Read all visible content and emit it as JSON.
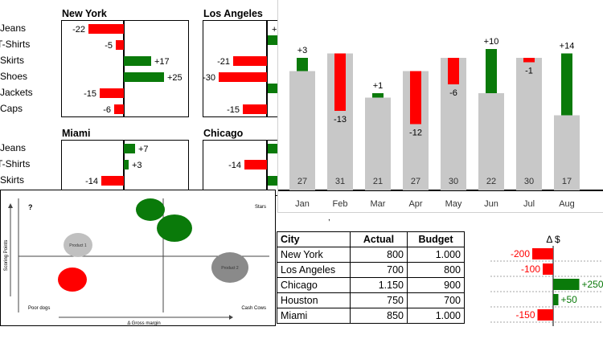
{
  "colors": {
    "positive": "#0a7a0a",
    "negative": "#ff0000",
    "bar_grey": "#c8c8c8",
    "axis": "#000000"
  },
  "chart_data": [
    {
      "type": "bar",
      "orientation": "horizontal",
      "title": "New York",
      "categories": [
        "Jeans",
        "T-Shirts",
        "Skirts",
        "Shoes",
        "Jackets",
        "Caps"
      ],
      "values": [
        -22,
        -5,
        17,
        25,
        -15,
        -6
      ],
      "labels": [
        "-22",
        "-5",
        "+17",
        "+25",
        "-15",
        "-6"
      ]
    },
    {
      "type": "bar",
      "orientation": "horizontal",
      "title": "Los Angeles",
      "categories": [
        "Jeans",
        "T-Shirts",
        "Skirts",
        "Shoes",
        "Jackets",
        "Caps"
      ],
      "values": [
        null,
        null,
        -21,
        -30,
        null,
        -15
      ],
      "labels": [
        "+",
        "",
        "-21",
        "-30",
        "",
        "-15"
      ]
    },
    {
      "type": "bar",
      "orientation": "horizontal",
      "title": "Miami",
      "categories": [
        "Jeans",
        "T-Shirts",
        "Skirts"
      ],
      "values": [
        7,
        3,
        -14
      ],
      "labels": [
        "+7",
        "+3",
        "-14"
      ]
    },
    {
      "type": "bar",
      "orientation": "horizontal",
      "title": "Chicago",
      "categories": [
        "Jeans",
        "T-Shirts",
        "Skirts"
      ],
      "values": [
        null,
        -14,
        null
      ],
      "labels": [
        "",
        "-14",
        ""
      ]
    },
    {
      "type": "bar",
      "title": "",
      "categories": [
        "Jan",
        "Feb",
        "Mar",
        "Apr",
        "May",
        "Jun",
        "Jul",
        "Aug"
      ],
      "series": [
        {
          "values": [
            27,
            31,
            21,
            27,
            30,
            22,
            30,
            17
          ]
        },
        {
          "values": [
            3,
            -13,
            1,
            -12,
            -6,
            10,
            -1,
            14
          ]
        }
      ],
      "delta_labels": [
        "+3",
        "-13",
        "+1",
        "-12",
        "-6",
        "+10",
        "-1",
        "+14"
      ]
    },
    {
      "type": "scatter",
      "title": "",
      "xlabel": "Δ Gross margin",
      "ylabel": "Scoring Points",
      "quadrants": {
        "top_left": "?",
        "top_right": "Stars",
        "bottom_left": "Poor dogs",
        "bottom_right": "Cash Cows"
      },
      "points": [
        {
          "label": "Product 1",
          "x": 0.45,
          "y": 0.3,
          "color": "#c0c0c0"
        },
        {
          "label": "Product 2",
          "x": 0.87,
          "y": 0.38,
          "color": "#8a8a8a"
        },
        {
          "label": "",
          "x": 0.47,
          "y": 0.9,
          "color": "#0a7a0a"
        },
        {
          "label": "",
          "x": 0.55,
          "y": 0.78,
          "color": "#0a7a0a"
        },
        {
          "label": "",
          "x": 0.12,
          "y": 0.25,
          "color": "#ff0000"
        }
      ]
    },
    {
      "type": "table",
      "columns": [
        "City",
        "Actual",
        "Budget"
      ],
      "rows": [
        [
          "New York",
          "800",
          "1.000"
        ],
        [
          "Los Angeles",
          "700",
          "800"
        ],
        [
          "Chicago",
          "1.150",
          "900"
        ],
        [
          "Houston",
          "750",
          "700"
        ],
        [
          "Miami",
          "850",
          "1.000"
        ]
      ]
    },
    {
      "type": "bar",
      "orientation": "horizontal",
      "title": "Δ $",
      "values": [
        -200,
        -100,
        250,
        50,
        -150
      ],
      "labels": [
        "-200",
        "-100",
        "+250",
        "+50",
        "-150"
      ]
    }
  ]
}
